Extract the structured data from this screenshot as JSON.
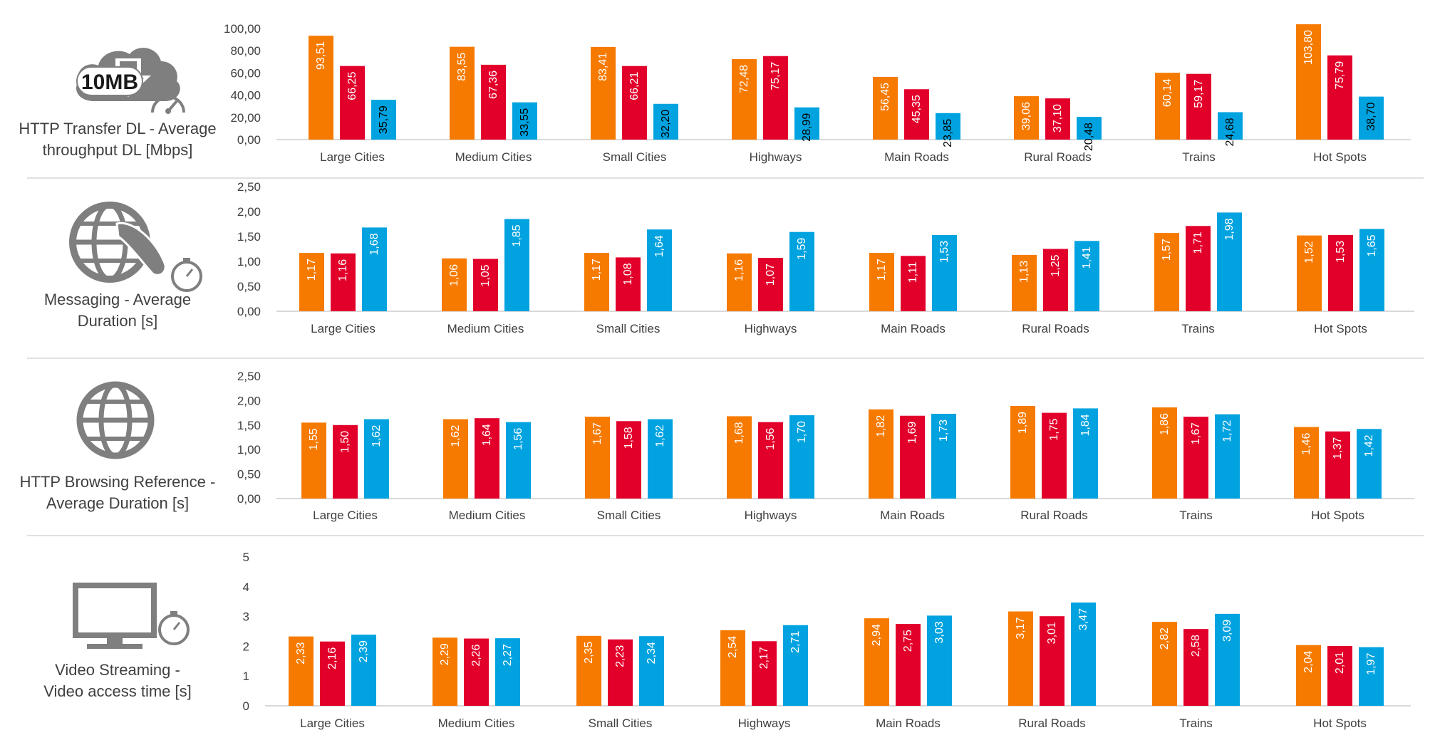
{
  "colors": {
    "series": [
      "#f67a00",
      "#e2002b",
      "#00a3e0"
    ],
    "axis_text": "#404040",
    "grid": "#d9d9d9",
    "icon": "#7f7f7f"
  },
  "panels": [
    {
      "icon": "cloud-download-10mb-icon",
      "badge": "10MB",
      "label_lines": [
        "HTTP Transfer DL - Average",
        "throughput DL [Mbps]"
      ]
    },
    {
      "icon": "globe-phone-stopwatch-icon",
      "label_lines": [
        "Messaging - Average",
        "Duration [s]"
      ]
    },
    {
      "icon": "globe-icon",
      "label_lines": [
        "HTTP Browsing Reference -",
        "Average Duration [s]"
      ]
    },
    {
      "icon": "monitor-stopwatch-icon",
      "label_lines": [
        "Video Streaming -",
        "Video access time [s]"
      ]
    }
  ],
  "chart_data": [
    {
      "type": "bar",
      "title": "HTTP Transfer DL - Average throughput DL [Mbps]",
      "categories": [
        "Large Cities",
        "Medium Cities",
        "Small Cities",
        "Highways",
        "Main Roads",
        "Rural Roads",
        "Trains",
        "Hot Spots"
      ],
      "ylim": [
        0,
        100
      ],
      "yticks": [
        "0,00",
        "20,00",
        "40,00",
        "60,00",
        "80,00",
        "100,00"
      ],
      "series": [
        {
          "values": [
            93.51,
            83.55,
            83.41,
            72.48,
            56.45,
            39.06,
            60.14,
            103.8
          ],
          "labels": [
            "93,51",
            "83,55",
            "83,41",
            "72,48",
            "56,45",
            "39,06",
            "60,14",
            "103,80"
          ]
        },
        {
          "values": [
            66.25,
            67.36,
            66.21,
            75.17,
            45.35,
            37.1,
            59.17,
            75.79
          ],
          "labels": [
            "66,25",
            "67,36",
            "66,21",
            "75,17",
            "45,35",
            "37,10",
            "59,17",
            "75,79"
          ]
        },
        {
          "values": [
            35.79,
            33.55,
            32.2,
            28.99,
            23.85,
            20.48,
            24.68,
            38.7
          ],
          "labels": [
            "35,79",
            "33,55",
            "32,20",
            "28,99",
            "23,85",
            "20,48",
            "24,68",
            "38,70"
          ]
        }
      ]
    },
    {
      "type": "bar",
      "title": "Messaging - Average Duration [s]",
      "categories": [
        "Large Cities",
        "Medium Cities",
        "Small Cities",
        "Highways",
        "Main Roads",
        "Rural Roads",
        "Trains",
        "Hot Spots"
      ],
      "ylim": [
        0,
        2.5
      ],
      "yticks": [
        "0,00",
        "0,50",
        "1,00",
        "1,50",
        "2,00",
        "2,50"
      ],
      "series": [
        {
          "values": [
            1.17,
            1.06,
            1.17,
            1.16,
            1.17,
            1.13,
            1.57,
            1.52
          ],
          "labels": [
            "1,17",
            "1,06",
            "1,17",
            "1,16",
            "1,17",
            "1,13",
            "1,57",
            "1,52"
          ]
        },
        {
          "values": [
            1.16,
            1.05,
            1.08,
            1.07,
            1.11,
            1.25,
            1.71,
            1.53
          ],
          "labels": [
            "1,16",
            "1,05",
            "1,08",
            "1,07",
            "1,11",
            "1,25",
            "1,71",
            "1,53"
          ]
        },
        {
          "values": [
            1.68,
            1.85,
            1.64,
            1.59,
            1.53,
            1.41,
            1.98,
            1.65
          ],
          "labels": [
            "1,68",
            "1,85",
            "1,64",
            "1,59",
            "1,53",
            "1,41",
            "1,98",
            "1,65"
          ]
        }
      ]
    },
    {
      "type": "bar",
      "title": "HTTP Browsing Reference - Average Duration [s]",
      "categories": [
        "Large Cities",
        "Medium Cities",
        "Small Cities",
        "Highways",
        "Main Roads",
        "Rural Roads",
        "Trains",
        "Hot Spots"
      ],
      "ylim": [
        0,
        2.5
      ],
      "yticks": [
        "0,00",
        "0,50",
        "1,00",
        "1,50",
        "2,00",
        "2,50"
      ],
      "series": [
        {
          "values": [
            1.55,
            1.62,
            1.67,
            1.68,
            1.82,
            1.89,
            1.86,
            1.46
          ],
          "labels": [
            "1,55",
            "1,62",
            "1,67",
            "1,68",
            "1,82",
            "1,89",
            "1,86",
            "1,46"
          ]
        },
        {
          "values": [
            1.5,
            1.64,
            1.58,
            1.56,
            1.69,
            1.75,
            1.67,
            1.37
          ],
          "labels": [
            "1,50",
            "1,64",
            "1,58",
            "1,56",
            "1,69",
            "1,75",
            "1,67",
            "1,37"
          ]
        },
        {
          "values": [
            1.62,
            1.56,
            1.62,
            1.7,
            1.73,
            1.84,
            1.72,
            1.42
          ],
          "labels": [
            "1,62",
            "1,56",
            "1,62",
            "1,70",
            "1,73",
            "1,84",
            "1,72",
            "1,42"
          ]
        }
      ]
    },
    {
      "type": "bar",
      "title": "Video Streaming - Video access time [s]",
      "categories": [
        "Large Cities",
        "Medium Cities",
        "Small Cities",
        "Highways",
        "Main Roads",
        "Rural Roads",
        "Trains",
        "Hot Spots"
      ],
      "ylim": [
        0,
        5
      ],
      "yticks": [
        "0",
        "1",
        "2",
        "3",
        "4",
        "5"
      ],
      "series": [
        {
          "values": [
            2.33,
            2.29,
            2.35,
            2.54,
            2.94,
            3.17,
            2.82,
            2.04
          ],
          "labels": [
            "2,33",
            "2,29",
            "2,35",
            "2,54",
            "2,94",
            "3,17",
            "2,82",
            "2,04"
          ]
        },
        {
          "values": [
            2.16,
            2.26,
            2.23,
            2.17,
            2.75,
            3.01,
            2.58,
            2.01
          ],
          "labels": [
            "2,16",
            "2,26",
            "2,23",
            "2,17",
            "2,75",
            "3,01",
            "2,58",
            "2,01"
          ]
        },
        {
          "values": [
            2.39,
            2.27,
            2.34,
            2.71,
            3.03,
            3.47,
            3.09,
            1.97
          ],
          "labels": [
            "2,39",
            "2,27",
            "2,34",
            "2,71",
            "3,03",
            "3,47",
            "3,09",
            "1,97"
          ]
        }
      ]
    }
  ]
}
